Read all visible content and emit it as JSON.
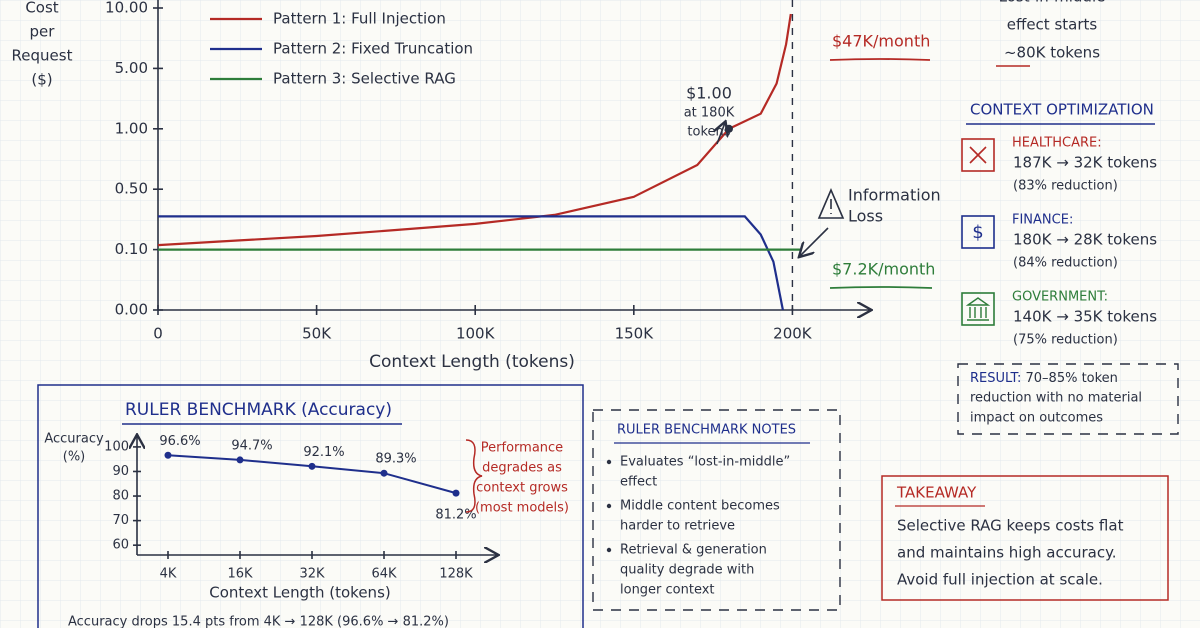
{
  "chart_data": [
    {
      "type": "line",
      "y_label": [
        "Cost",
        "per",
        "Request",
        "($)"
      ],
      "x_label": "Context Length (tokens)",
      "xlim": [
        0,
        215000
      ],
      "xticks": [
        0,
        {
          "value": 50000,
          "label": "50K"
        },
        {
          "value": 100000,
          "label": "100K"
        },
        {
          "value": 150000,
          "label": "150K"
        },
        {
          "value": 200000,
          "label": "200K"
        }
      ],
      "ylim": [
        0,
        10
      ],
      "yticks": [
        {
          "value": 0,
          "label": "0.00"
        },
        {
          "value": 0.1,
          "label": "0.10"
        },
        {
          "value": 0.5,
          "label": "0.50"
        },
        {
          "value": 1,
          "label": "1.00"
        },
        {
          "value": 5,
          "label": "5.00"
        },
        {
          "value": 10,
          "label": "10.00"
        }
      ],
      "series": [
        {
          "name": "Pattern 1: Full Injection",
          "color": "#b52a25",
          "x": [
            0,
            25000,
            50000,
            75000,
            100000,
            125000,
            150000,
            170000,
            180000,
            190000,
            195000,
            198000,
            199500
          ],
          "values": [
            0.13,
            0.16,
            0.19,
            0.23,
            0.27,
            0.33,
            0.45,
            0.7,
            1.0,
            2.0,
            4.0,
            7.0,
            9.5
          ]
        },
        {
          "name": "Pattern 2: Fixed Truncation",
          "color": "#1f2f8c",
          "x": [
            0,
            185000,
            190000,
            194000,
            197000
          ],
          "values": [
            0.32,
            0.32,
            0.2,
            0.08,
            0
          ]
        },
        {
          "name": "Pattern 3: Selective RAG",
          "color": "#2e7d3a",
          "x": [
            0,
            203000
          ],
          "values": [
            0.1,
            0.1
          ]
        }
      ],
      "highlight": {
        "x": 180000,
        "y": 1.0,
        "lines": [
          "$1.00",
          "at 180K",
          "tokens"
        ]
      },
      "annotations": [
        {
          "lines": [
            "$47K/month"
          ],
          "color": "#b52a25"
        },
        {
          "lines": [
            "Information",
            "Loss"
          ],
          "color": "#2b3142"
        },
        {
          "lines": [
            "$7.2K/month"
          ],
          "color": "#2e7d3a"
        }
      ]
    },
    {
      "type": "line",
      "title": "RULER BENCHMARK (Accuracy)",
      "y_label": [
        "Accuracy",
        "(%)"
      ],
      "x_label": "Context Length (tokens)",
      "categories": [
        "4K",
        "16K",
        "32K",
        "64K",
        "128K"
      ],
      "values": [
        96.6,
        94.7,
        92.1,
        89.3,
        81.2
      ],
      "value_labels": [
        "96.6%",
        "94.7%",
        "92.1%",
        "89.3%",
        "81.2%"
      ],
      "color": "#1f2f8c",
      "ylim": [
        56,
        102
      ],
      "yticks": [
        60,
        70,
        80,
        90,
        100
      ],
      "note": [
        "Performance",
        "degrades as",
        "context grows",
        "(most models)"
      ],
      "footer": "Accuracy drops 15.4 pts from 4K → 128K (96.6% → 81.2%)"
    }
  ],
  "lost_in_middle": [
    "Lost-in-middle",
    "effect starts",
    "~80K tokens"
  ],
  "context_optimization": {
    "title": "CONTEXT OPTIMIZATION",
    "items": [
      {
        "name": "HEALTHCARE:",
        "detail": "187K → 32K tokens",
        "reduction": "(83% reduction)"
      },
      {
        "name": "FINANCE:",
        "icon": "$",
        "detail": "180K → 28K tokens",
        "reduction": "(84% reduction)"
      },
      {
        "name": "GOVERNMENT:",
        "detail": "140K → 35K tokens",
        "reduction": "(75% reduction)"
      }
    ]
  },
  "result": {
    "label": "RESULT:",
    "lines": [
      "70–85% token",
      "reduction with no material",
      "impact on outcomes"
    ]
  },
  "ruler_notes": {
    "title": "RULER BENCHMARK NOTES",
    "items": [
      [
        "Evaluates “lost-in-middle”",
        "effect"
      ],
      [
        "Middle content becomes",
        "harder to retrieve"
      ],
      [
        "Retrieval & generation",
        "quality degrade with",
        "longer context"
      ]
    ]
  },
  "takeaway": {
    "title": "TAKEAWAY",
    "lines": [
      "Selective RAG keeps costs flat",
      "and maintains high accuracy.",
      "Avoid full injection at scale."
    ]
  }
}
